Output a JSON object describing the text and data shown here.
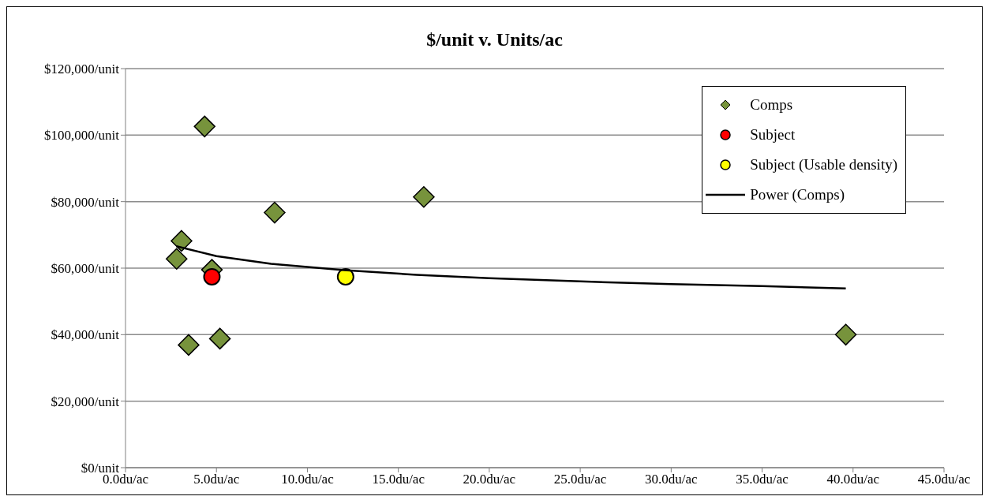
{
  "chart_data": {
    "type": "scatter",
    "title": "$/unit v. Units/ac",
    "series": [
      {
        "name": "Comps",
        "type": "scatter",
        "marker": "diamond",
        "color": "#77933c",
        "x": [
          4.35,
          3.08,
          2.81,
          4.75,
          8.2,
          16.4,
          3.47,
          5.19,
          39.6
        ],
        "values": [
          102600,
          68200,
          62800,
          59500,
          76700,
          81400,
          36900,
          38800,
          40000
        ]
      },
      {
        "name": "Subject",
        "type": "scatter",
        "marker": "circle",
        "color": "#ff0000",
        "x": [
          4.75
        ],
        "values": [
          57400
        ]
      },
      {
        "name": "Subject (Usable density)",
        "type": "scatter",
        "marker": "circle",
        "color": "#ffff00",
        "x": [
          12.1
        ],
        "values": [
          57400
        ]
      },
      {
        "name": "Power (Comps)",
        "type": "line",
        "marker": "none",
        "color": "#000000",
        "x": [
          2.8,
          5,
          8,
          12,
          16,
          20,
          25,
          30,
          35,
          39.6
        ],
        "values": [
          66600,
          63600,
          61300,
          59400,
          58000,
          57000,
          56000,
          55200,
          54600,
          53900
        ]
      }
    ],
    "xlim": [
      0,
      45
    ],
    "xticks": [
      {
        "value": 0,
        "label": "0.0du/ac"
      },
      {
        "value": 5,
        "label": "5.0du/ac"
      },
      {
        "value": 10,
        "label": "10.0du/ac"
      },
      {
        "value": 15,
        "label": "15.0du/ac"
      },
      {
        "value": 20,
        "label": "20.0du/ac"
      },
      {
        "value": 25,
        "label": "25.0du/ac"
      },
      {
        "value": 30,
        "label": "30.0du/ac"
      },
      {
        "value": 35,
        "label": "35.0du/ac"
      },
      {
        "value": 40,
        "label": "40.0du/ac"
      },
      {
        "value": 45,
        "label": "45.0du/ac"
      }
    ],
    "ylim": [
      0,
      120000
    ],
    "yticks": [
      {
        "value": 0,
        "label": "$0/unit"
      },
      {
        "value": 20000,
        "label": "$20,000/unit"
      },
      {
        "value": 40000,
        "label": "$40,000/unit"
      },
      {
        "value": 60000,
        "label": "$60,000/unit"
      },
      {
        "value": 80000,
        "label": "$80,000/unit"
      },
      {
        "value": 100000,
        "label": "$100,000/unit"
      },
      {
        "value": 120000,
        "label": "$120,000/unit"
      }
    ],
    "grid": "y",
    "legend": "top right"
  }
}
